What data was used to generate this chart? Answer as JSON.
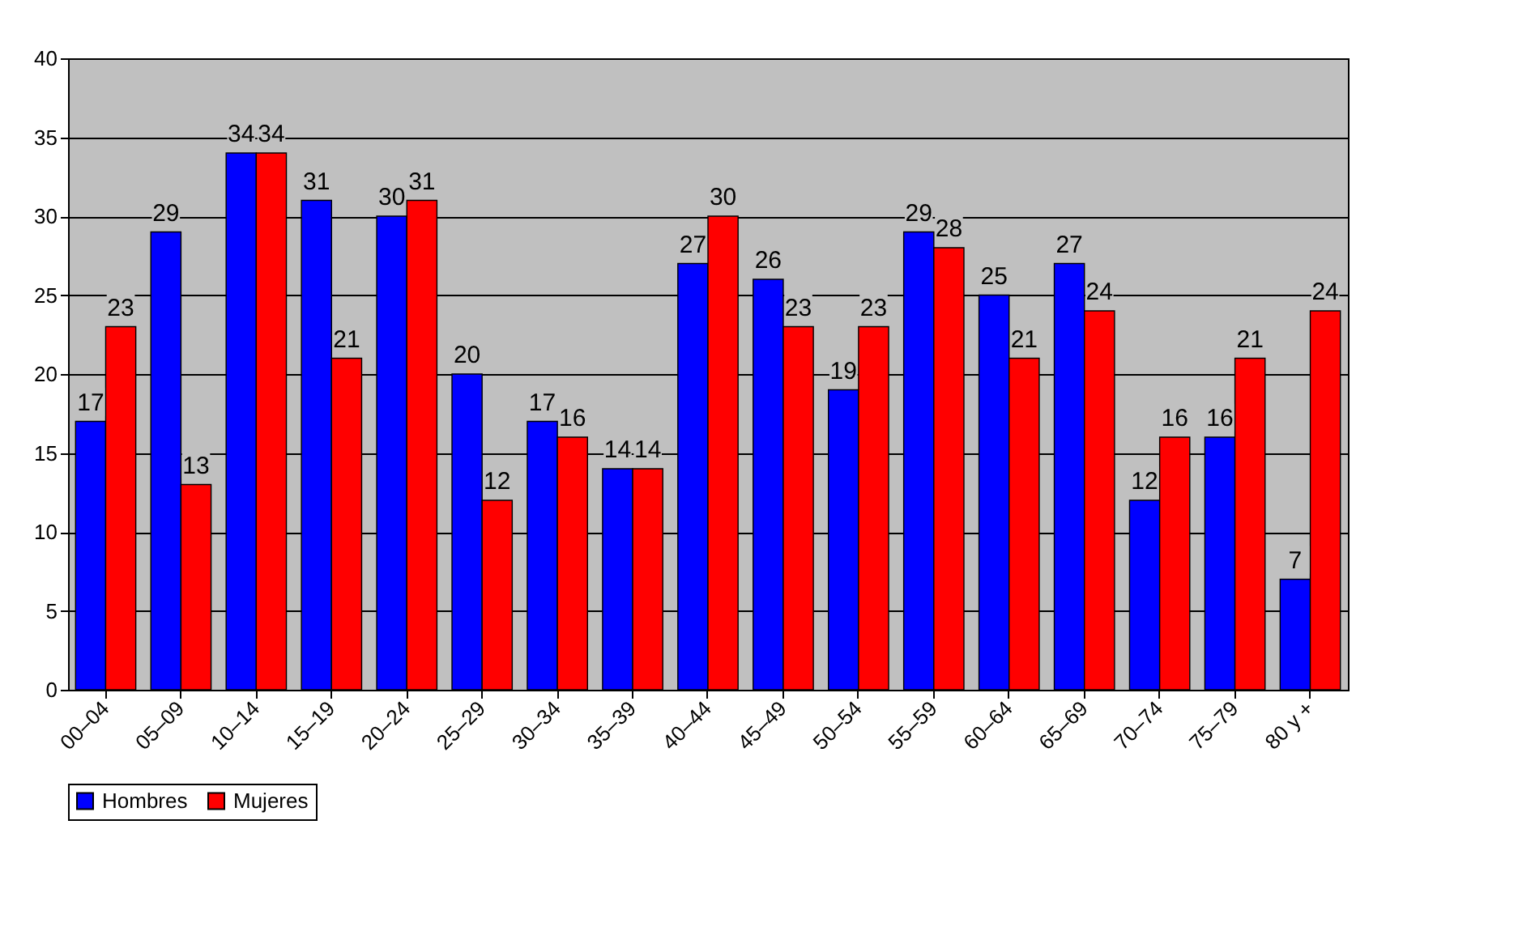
{
  "chart_data": {
    "type": "bar",
    "categories": [
      "00–04",
      "05–09",
      "10–14",
      "15–19",
      "20–24",
      "25–29",
      "30–34",
      "35–39",
      "40–44",
      "45–49",
      "50–54",
      "55–59",
      "60–64",
      "65–69",
      "70–74",
      "75–79",
      "80 y +"
    ],
    "series": [
      {
        "name": "Hombres",
        "color": "#0000ff",
        "values": [
          17,
          29,
          34,
          31,
          30,
          20,
          17,
          14,
          27,
          26,
          19,
          29,
          25,
          27,
          12,
          16,
          7
        ]
      },
      {
        "name": "Mujeres",
        "color": "#ff0000",
        "values": [
          23,
          13,
          34,
          21,
          31,
          12,
          16,
          14,
          30,
          23,
          23,
          28,
          21,
          24,
          16,
          21,
          24
        ]
      }
    ],
    "ylim": [
      0,
      40
    ],
    "yticks": [
      0,
      5,
      10,
      15,
      20,
      25,
      30,
      35,
      40
    ],
    "grid": "y",
    "legend": "bottom",
    "data_labels": true
  }
}
